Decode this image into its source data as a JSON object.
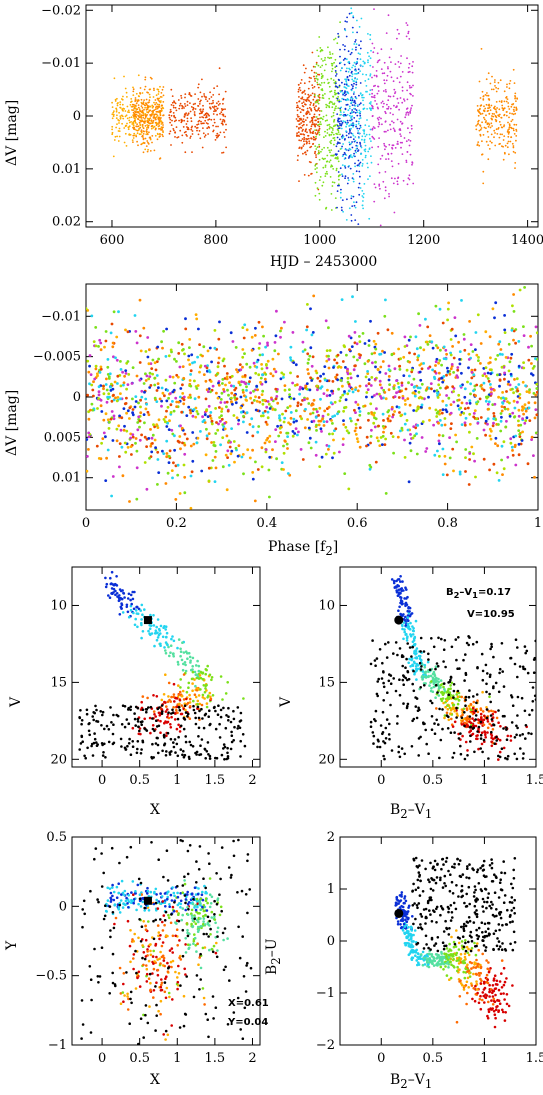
{
  "colors": {
    "palette": [
      "#0a2fd6",
      "#2a7bff",
      "#22d4f0",
      "#55e0a0",
      "#7be01a",
      "#b0e000",
      "#ffae00",
      "#ff8a00",
      "#ff6a00",
      "#e84800",
      "#d80000",
      "#c83c00",
      "#cc33cc",
      "#e070e0",
      "#000000"
    ],
    "axis": "#000000",
    "marker": "#000000"
  },
  "chart_data": [
    {
      "id": "panel-lightcurve",
      "type": "scatter",
      "title": "",
      "xlabel": "HJD – 2453000",
      "ylabel": "ΔV [mag]",
      "xlim": [
        550,
        1420
      ],
      "ylim": [
        0.021,
        -0.021
      ],
      "x_ticks": [
        "600",
        "800",
        "1000",
        "1200",
        "1400"
      ],
      "y_ticks": [
        "−0.02",
        "−0.01",
        "0",
        "0.01",
        "0.02"
      ],
      "observing_runs": [
        {
          "x": [
            600,
            700
          ],
          "y_spread": 0.006,
          "color": "#ffae00"
        },
        {
          "x": [
            640,
            700
          ],
          "y_spread": 0.0065,
          "color": "#ff8a00"
        },
        {
          "x": [
            710,
            820
          ],
          "y_spread": 0.006,
          "color": "#e84800"
        },
        {
          "x": [
            955,
            1000
          ],
          "y_spread": 0.01,
          "color": "#e84800"
        },
        {
          "x": [
            990,
            1040
          ],
          "y_spread": 0.017,
          "color": "#7be01a"
        },
        {
          "x": [
            1030,
            1080
          ],
          "y_spread": 0.019,
          "color": "#0a2fd6"
        },
        {
          "x": [
            1040,
            1100
          ],
          "y_spread": 0.02,
          "color": "#22d4f0"
        },
        {
          "x": [
            1100,
            1180
          ],
          "y_spread": 0.019,
          "color": "#cc33cc"
        },
        {
          "x": [
            1300,
            1380
          ],
          "y_spread": 0.008,
          "color": "#ff8a00"
        }
      ]
    },
    {
      "id": "panel-phase",
      "type": "scatter",
      "title": "",
      "xlabel": "Phase [f2]",
      "ylabel": "ΔV [mag]",
      "xlim": [
        0,
        1
      ],
      "ylim": [
        0.014,
        -0.014
      ],
      "x_ticks": [
        "0",
        "0.2",
        "0.4",
        "0.6",
        "0.8",
        "1"
      ],
      "y_ticks": [
        "−0.01",
        "−0.005",
        "0",
        "0.005",
        "0.01"
      ],
      "amplitude": 0.003
    },
    {
      "id": "panel-cmd-x",
      "type": "scatter",
      "title": "",
      "xlabel": "X",
      "ylabel": "V",
      "xlim": [
        -0.4,
        2.1
      ],
      "ylim": [
        20.5,
        7.5
      ],
      "x_ticks": [
        "0",
        "0.5",
        "1",
        "1.5",
        "2"
      ],
      "y_ticks": [
        "10",
        "15",
        "20"
      ],
      "target": {
        "x": 0.61,
        "y": 10.95
      }
    },
    {
      "id": "panel-cmd-bv",
      "type": "scatter",
      "title": "",
      "xlabel": "B2–V1",
      "ylabel": "V",
      "xlim": [
        -0.4,
        1.5
      ],
      "ylim": [
        20.5,
        7.5
      ],
      "x_ticks": [
        "0",
        "0.5",
        "1",
        "1.5"
      ],
      "y_ticks": [
        "10",
        "15",
        "20"
      ],
      "target": {
        "x": 0.17,
        "y": 10.95
      },
      "annotations": [
        "B2–V1=0.17",
        "V=10.95"
      ]
    },
    {
      "id": "panel-xy",
      "type": "scatter",
      "title": "",
      "xlabel": "X",
      "ylabel": "Y",
      "xlim": [
        -0.4,
        2.1
      ],
      "ylim": [
        -1,
        0.5
      ],
      "x_ticks": [
        "0",
        "0.5",
        "1",
        "1.5",
        "2"
      ],
      "y_ticks": [
        "−1",
        "−0.5",
        "0",
        "0.5"
      ],
      "target": {
        "x": 0.61,
        "y": 0.04
      },
      "annotations": [
        "X=0.61",
        "Y=0.04"
      ]
    },
    {
      "id": "panel-ccd",
      "type": "scatter",
      "title": "",
      "xlabel": "B2–V1",
      "ylabel": "B2–U",
      "xlim": [
        -0.4,
        1.5
      ],
      "ylim": [
        -2,
        2
      ],
      "x_ticks": [
        "0",
        "0.5",
        "1",
        "1.5"
      ],
      "y_ticks": [
        "−2",
        "−1",
        "0",
        "1",
        "2"
      ],
      "target": {
        "x": 0.17,
        "y": 0.53
      }
    }
  ]
}
